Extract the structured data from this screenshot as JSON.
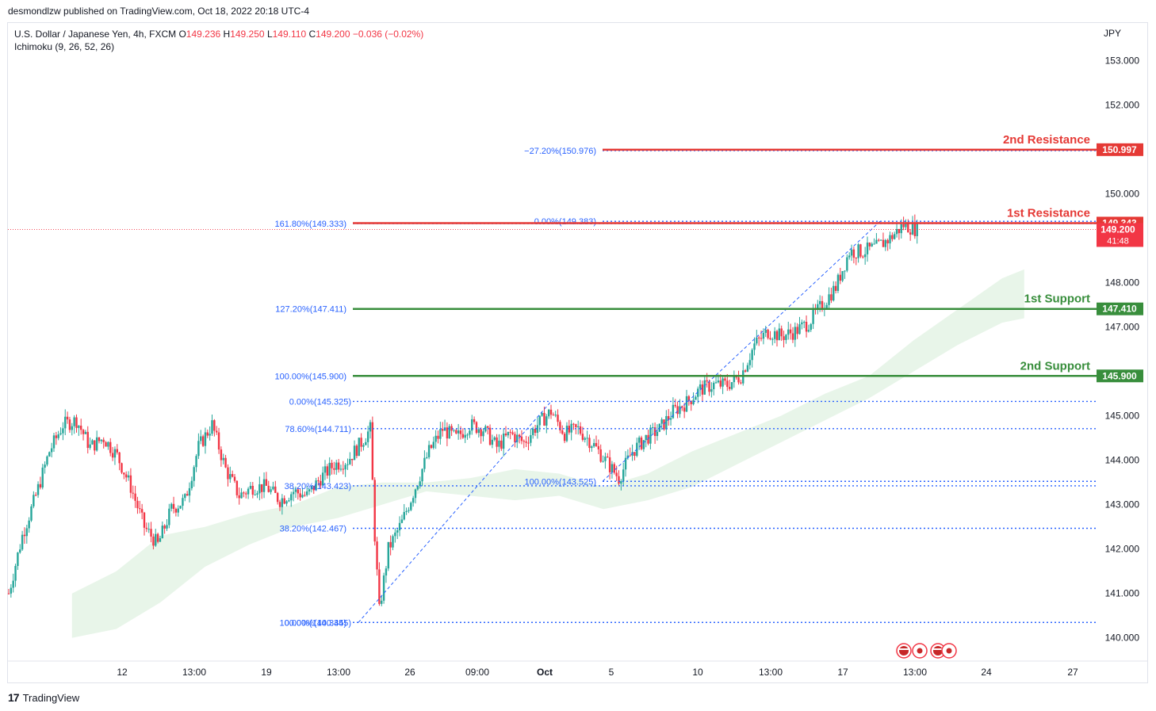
{
  "header": {
    "published_by": "desmondlzw published on TradingView.com, Oct 18, 2022 20:18 UTC-4",
    "symbol": "U.S. Dollar / Japanese Yen, 4h, FXCM",
    "ohlc": {
      "O_label": "O",
      "O": "149.236",
      "H_label": "H",
      "H": "149.250",
      "L_label": "L",
      "L": "149.110",
      "C_label": "C",
      "C": "149.200",
      "change": "−0.036 (−0.02%)"
    },
    "indicator": "Ichimoku (9, 26, 52, 26)",
    "currency": "JPY"
  },
  "footer": {
    "brand": "TradingView",
    "logo": "17"
  },
  "colors": {
    "up": "#26a69a",
    "down": "#f23645",
    "support": "#388e3c",
    "resistance": "#e53935",
    "fib": "#2962ff",
    "cloud": "#e8f5e9"
  },
  "chart_data": {
    "type": "candlestick",
    "instrument": "USDJPY",
    "timeframe": "4h",
    "ylim": [
      139.5,
      153.7
    ],
    "y_ticks": [
      "153.000",
      "152.000",
      "150.000",
      "148.000",
      "147.000",
      "145.000",
      "144.000",
      "143.000",
      "142.000",
      "141.000",
      "140.000"
    ],
    "x_ticks": [
      "12",
      "13:00",
      "19",
      "13:00",
      "26",
      "09:00",
      "Oct",
      "5",
      "10",
      "13:00",
      "17",
      "13:00",
      "24",
      "27"
    ],
    "close_path": [
      [
        0,
        141.0
      ],
      [
        6,
        142.3
      ],
      [
        12,
        143.2
      ],
      [
        18,
        144.2
      ],
      [
        24,
        144.8
      ],
      [
        30,
        144.9
      ],
      [
        36,
        144.3
      ],
      [
        42,
        144.5
      ],
      [
        48,
        144.1
      ],
      [
        54,
        143.4
      ],
      [
        60,
        142.5
      ],
      [
        66,
        142.1
      ],
      [
        72,
        142.9
      ],
      [
        78,
        143.1
      ],
      [
        84,
        144.3
      ],
      [
        90,
        144.8
      ],
      [
        96,
        143.8
      ],
      [
        102,
        143.2
      ],
      [
        108,
        143.4
      ],
      [
        114,
        143.4
      ],
      [
        120,
        143.1
      ],
      [
        126,
        143.3
      ],
      [
        132,
        143.2
      ],
      [
        138,
        143.6
      ],
      [
        144,
        143.9
      ],
      [
        150,
        144.0
      ],
      [
        156,
        144.4
      ],
      [
        160,
        144.7
      ],
      [
        162,
        142.3
      ],
      [
        164,
        140.6
      ],
      [
        168,
        142.0
      ],
      [
        174,
        142.6
      ],
      [
        180,
        143.4
      ],
      [
        186,
        144.2
      ],
      [
        192,
        144.7
      ],
      [
        198,
        144.5
      ],
      [
        204,
        144.8
      ],
      [
        210,
        144.7
      ],
      [
        216,
        144.3
      ],
      [
        222,
        144.6
      ],
      [
        228,
        144.4
      ],
      [
        234,
        144.8
      ],
      [
        240,
        145.1
      ],
      [
        246,
        144.6
      ],
      [
        252,
        144.7
      ],
      [
        258,
        144.4
      ],
      [
        264,
        144.0
      ],
      [
        270,
        143.6
      ],
      [
        276,
        144.2
      ],
      [
        282,
        144.5
      ],
      [
        288,
        144.7
      ],
      [
        294,
        145.1
      ],
      [
        300,
        145.3
      ],
      [
        306,
        145.6
      ],
      [
        312,
        145.7
      ],
      [
        318,
        145.7
      ],
      [
        324,
        145.9
      ],
      [
        330,
        146.6
      ],
      [
        336,
        146.9
      ],
      [
        342,
        146.8
      ],
      [
        348,
        146.9
      ],
      [
        354,
        147.1
      ],
      [
        360,
        147.5
      ],
      [
        366,
        147.9
      ],
      [
        372,
        148.7
      ],
      [
        378,
        148.7
      ],
      [
        384,
        148.8
      ],
      [
        390,
        149.0
      ],
      [
        396,
        149.3
      ],
      [
        402,
        149.2
      ]
    ],
    "fib_levels": [
      {
        "label": "−27.20%(150.976)",
        "value": 150.976
      },
      {
        "label": "161.80%(149.333)",
        "value": 149.333
      },
      {
        "label": "0.00%(149.383)",
        "value": 149.383
      },
      {
        "label": "127.20%(147.411)",
        "value": 147.411
      },
      {
        "label": "100.00%(145.900)",
        "value": 145.9
      },
      {
        "label": "0.00%(145.325)",
        "value": 145.325
      },
      {
        "label": "78.60%(144.711)",
        "value": 144.711
      },
      {
        "label": "38.20%(143.423)",
        "value": 143.423
      },
      {
        "label": "100.00%(143.525)",
        "value": 143.525
      },
      {
        "label": "38.20%(142.467)",
        "value": 142.467
      },
      {
        "label": "100.00%(140.345)",
        "value": 140.345
      },
      {
        "label": "0.00%(140.345)",
        "value": 140.345
      }
    ],
    "levels": [
      {
        "name": "2nd Resistance",
        "price": "150.997",
        "value": 150.997,
        "kind": "resistance"
      },
      {
        "name": "1st Resistance",
        "price": "149.343",
        "value": 149.343,
        "kind": "resistance"
      },
      {
        "name": "1st Support",
        "price": "147.410",
        "value": 147.41,
        "kind": "support"
      },
      {
        "name": "2nd Support",
        "price": "145.900",
        "value": 145.9,
        "kind": "support"
      }
    ],
    "current_price": {
      "value": 149.2,
      "label": "149.200",
      "countdown": "41:48"
    },
    "cloud_upper": [
      [
        0,
        141.0
      ],
      [
        20,
        141.5
      ],
      [
        40,
        142.3
      ],
      [
        60,
        142.5
      ],
      [
        80,
        142.8
      ],
      [
        100,
        143.0
      ],
      [
        120,
        143.4
      ],
      [
        140,
        143.5
      ],
      [
        160,
        143.5
      ],
      [
        180,
        143.6
      ],
      [
        200,
        143.8
      ],
      [
        220,
        143.7
      ],
      [
        240,
        143.4
      ],
      [
        260,
        143.7
      ],
      [
        280,
        144.2
      ],
      [
        300,
        144.6
      ],
      [
        320,
        145.0
      ],
      [
        340,
        145.5
      ],
      [
        360,
        145.9
      ],
      [
        380,
        146.7
      ],
      [
        400,
        147.4
      ],
      [
        420,
        148.1
      ],
      [
        430,
        148.3
      ]
    ],
    "cloud_lower": [
      [
        0,
        140.0
      ],
      [
        20,
        140.2
      ],
      [
        40,
        140.8
      ],
      [
        60,
        141.6
      ],
      [
        80,
        142.1
      ],
      [
        100,
        142.5
      ],
      [
        120,
        142.7
      ],
      [
        140,
        143.0
      ],
      [
        160,
        143.3
      ],
      [
        180,
        143.2
      ],
      [
        200,
        143.1
      ],
      [
        220,
        143.2
      ],
      [
        240,
        142.9
      ],
      [
        260,
        143.1
      ],
      [
        280,
        143.4
      ],
      [
        300,
        143.9
      ],
      [
        320,
        144.4
      ],
      [
        340,
        144.9
      ],
      [
        360,
        145.4
      ],
      [
        380,
        146.0
      ],
      [
        400,
        146.6
      ],
      [
        420,
        147.1
      ],
      [
        430,
        147.2
      ]
    ]
  }
}
